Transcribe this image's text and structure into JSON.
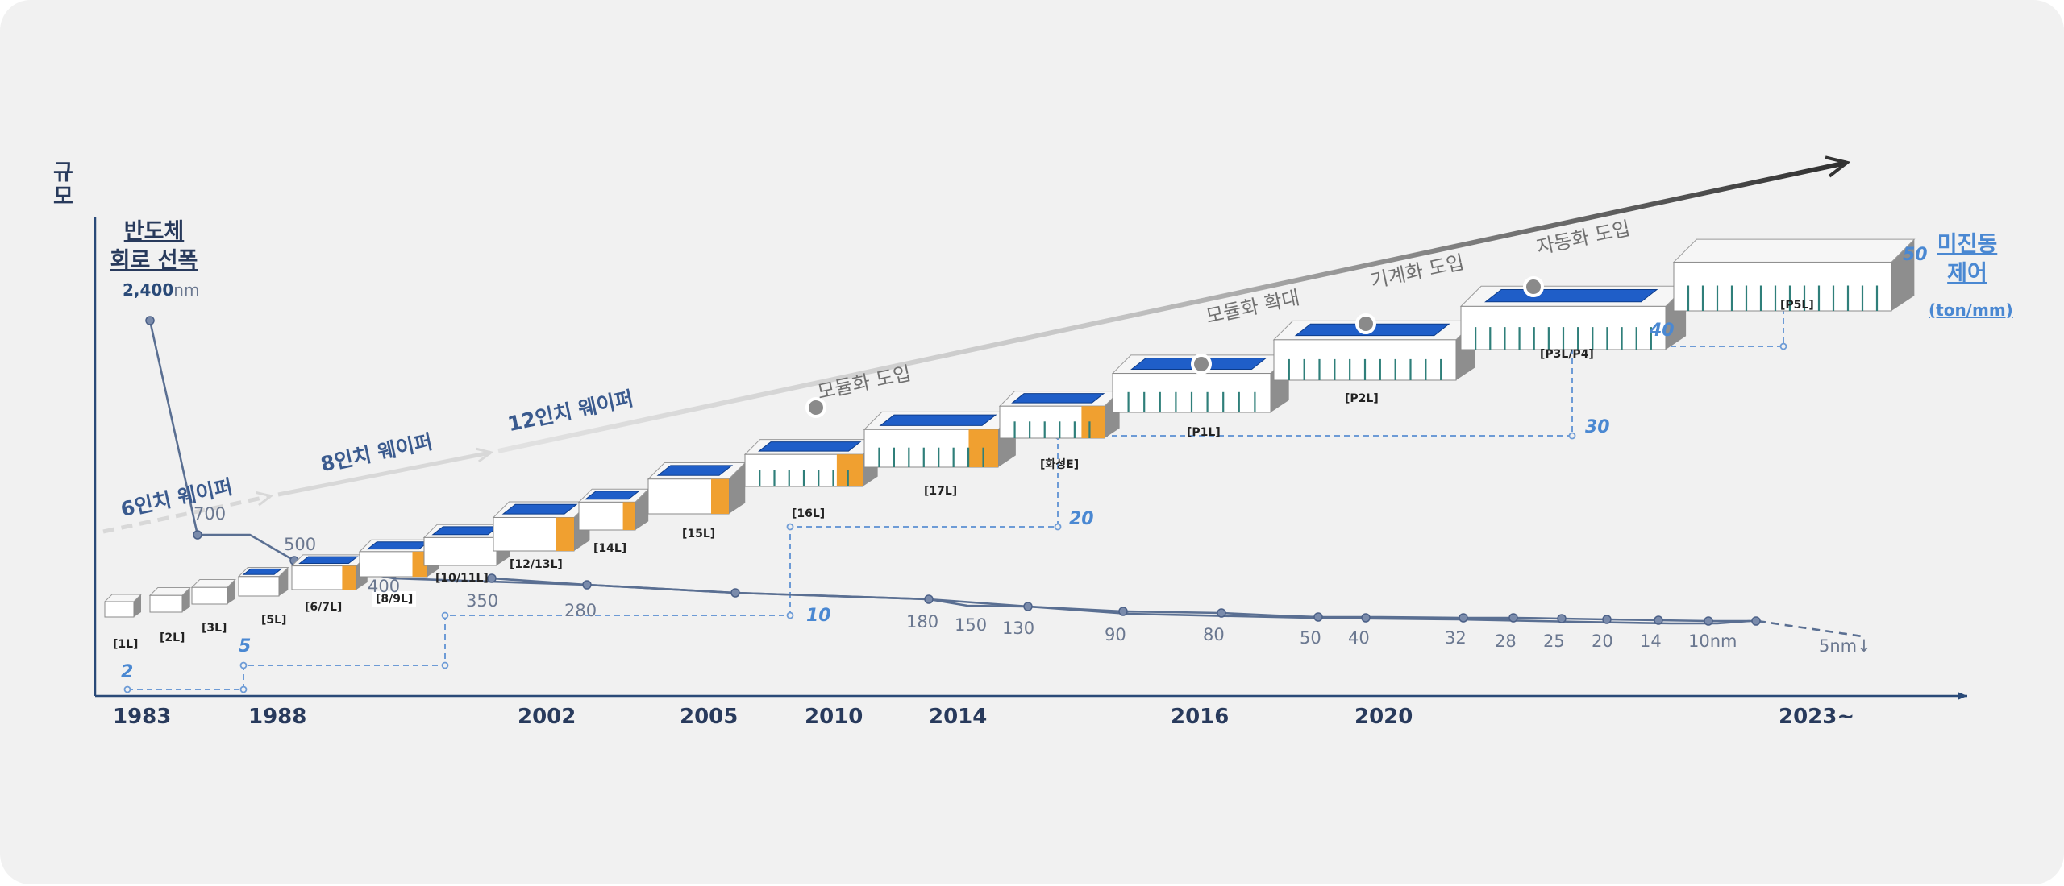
{
  "axis": {
    "y_label": "규모"
  },
  "left_title": {
    "line1": "반도체",
    "line2": "회로 선폭",
    "initial": "2,400",
    "unit": "nm"
  },
  "right_title": {
    "line1": "미진동",
    "line2": "제어",
    "unit": "(ton/mm)"
  },
  "years": [
    "1983",
    "1988",
    "2002",
    "2005",
    "2010",
    "2014",
    "2016",
    "2020",
    "2023~"
  ],
  "wafers": [
    "6인치 웨이퍼",
    "8인치 웨이퍼",
    "12인치 웨이퍼"
  ],
  "stages": [
    "모듈화 도입",
    "모듈화 확대",
    "기계화 도입",
    "자동화 도입"
  ],
  "fabs": [
    "[1L]",
    "[2L]",
    "[3L]",
    "[5L]",
    "[6/7L]",
    "[8/9L]",
    "[10/11L]",
    "[12/13L]",
    "[14L]",
    "[15L]",
    "[16L]",
    "[17L]",
    "[화성E]",
    "[P1L]",
    "[P2L]",
    "[P3L/P4]",
    "[P5L]"
  ],
  "node_labels": [
    "700",
    "500",
    "400",
    "350",
    "280",
    "180",
    "150",
    "130",
    "90",
    "80",
    "50",
    "40",
    "32",
    "28",
    "25",
    "20",
    "14",
    "10nm",
    "5nm↓"
  ],
  "vibration_values": [
    "2",
    "5",
    "10",
    "20",
    "30",
    "40",
    "50"
  ],
  "colors": {
    "axis": "#2a4a78",
    "node_line": "#5a6f92",
    "step_line": "#6d9bd6",
    "roof": "#1f5ec8",
    "accent": "#f0a030"
  }
}
